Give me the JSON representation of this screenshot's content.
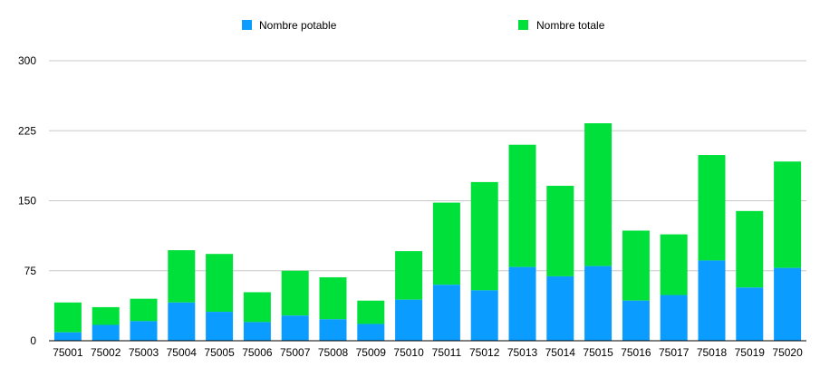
{
  "chart_data": {
    "type": "bar",
    "stacked": true,
    "categories": [
      "75001",
      "75002",
      "75003",
      "75004",
      "75005",
      "75006",
      "75007",
      "75008",
      "75009",
      "75010",
      "75011",
      "75012",
      "75013",
      "75014",
      "75015",
      "75016",
      "75017",
      "75018",
      "75019",
      "75020"
    ],
    "series": [
      {
        "name": "Nombre potable",
        "color": "#0a9dff",
        "values": [
          9,
          17,
          21,
          41,
          31,
          20,
          27,
          23,
          18,
          44,
          60,
          54,
          79,
          69,
          80,
          43,
          49,
          86,
          57,
          78
        ]
      },
      {
        "name": "Nombre totale",
        "color": "#00e03a",
        "values": [
          41,
          36,
          45,
          97,
          93,
          52,
          75,
          68,
          43,
          96,
          148,
          170,
          210,
          166,
          233,
          118,
          114,
          199,
          139,
          192
        ]
      }
    ],
    "yticks": [
      "0",
      "75",
      "150",
      "225",
      "300"
    ],
    "ylim": [
      0,
      300
    ],
    "grid": true,
    "legend_position": "top"
  }
}
